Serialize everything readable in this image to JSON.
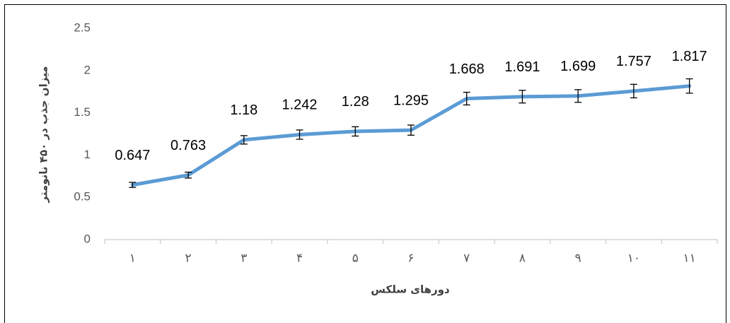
{
  "chart_data": {
    "type": "line",
    "y_label": "میزان جذب در ۴۵۰ نانومتر",
    "x_label": "دورهای سلکس",
    "categories": [
      "۱",
      "۲",
      "۳",
      "۴",
      "۵",
      "۶",
      "۷",
      "۸",
      "۹",
      "۱۰",
      "۱۱"
    ],
    "series": [
      {
        "color": "#5b9bd5",
        "values": [
          0.647,
          0.763,
          1.18,
          1.242,
          1.28,
          1.295,
          1.668,
          1.691,
          1.699,
          1.757,
          1.817
        ],
        "errors": [
          0.03,
          0.035,
          0.05,
          0.055,
          0.055,
          0.06,
          0.075,
          0.075,
          0.075,
          0.08,
          0.085
        ]
      }
    ],
    "ylim": [
      0,
      2.5
    ],
    "yticks": [
      0,
      0.5,
      1,
      1.5,
      2,
      2.5
    ],
    "grid": false
  }
}
